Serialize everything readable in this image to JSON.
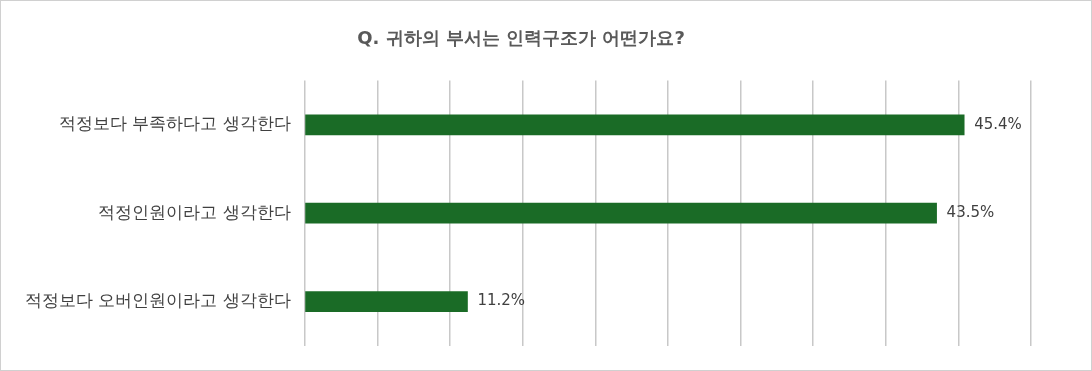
{
  "chart_data": {
    "type": "bar",
    "orientation": "horizontal",
    "title": "Q. 귀하의 부서는 인력구조가 어떤가요?",
    "categories": [
      "적정보다 부족하다고 생각한다",
      "적정인원이라고 생각한다",
      "적정보다 오버인원이라고 생각한다"
    ],
    "values": [
      45.4,
      43.5,
      11.2
    ],
    "color": "#1a6b26",
    "value_labels": [
      "45.4%",
      "43.5%",
      "11.2%"
    ],
    "xlim": [
      0,
      50
    ],
    "xticks": [
      {
        "value": 0,
        "label": null
      },
      {
        "value": 5,
        "label": null
      },
      {
        "value": 10,
        "label": null
      },
      {
        "value": 15,
        "label": null
      },
      {
        "value": 20,
        "label": null
      },
      {
        "value": 25,
        "label": null
      },
      {
        "value": 30,
        "label": null
      },
      {
        "value": 35,
        "label": null
      },
      {
        "value": 40,
        "label": null
      },
      {
        "value": 45,
        "label": null
      },
      {
        "value": 50,
        "label": null
      }
    ],
    "grid": "x",
    "legend": false,
    "tick_labels": "y"
  }
}
